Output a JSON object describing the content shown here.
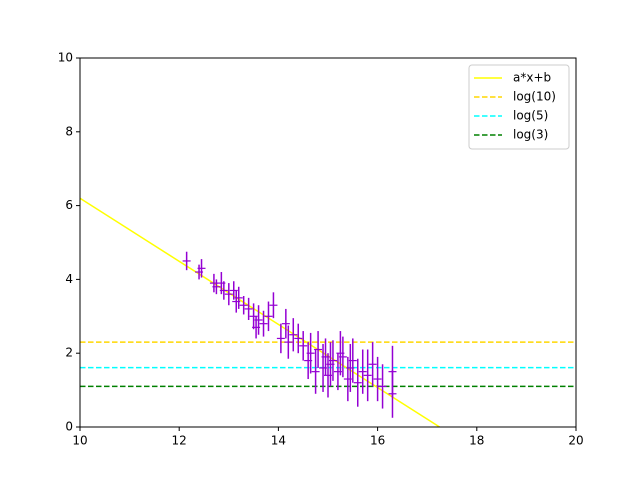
{
  "chart_data": {
    "type": "scatter",
    "color": "#9400d3",
    "x": [
      12.15,
      12.4,
      12.45,
      12.7,
      12.75,
      12.85,
      12.9,
      13.0,
      13.1,
      13.15,
      13.2,
      13.3,
      13.4,
      13.5,
      13.55,
      13.6,
      13.7,
      13.8,
      13.9,
      14.05,
      14.15,
      14.2,
      14.3,
      14.4,
      14.5,
      14.6,
      14.65,
      14.75,
      14.8,
      14.9,
      14.95,
      15.0,
      15.05,
      15.1,
      15.2,
      15.25,
      15.3,
      15.4,
      15.45,
      15.5,
      15.6,
      15.7,
      15.8,
      15.9,
      16.0,
      16.1,
      16.3,
      16.3
    ],
    "values": [
      4.5,
      4.2,
      4.3,
      3.9,
      3.8,
      3.9,
      3.7,
      3.6,
      3.7,
      3.4,
      3.5,
      3.3,
      3.2,
      3.0,
      2.7,
      2.9,
      2.8,
      3.0,
      3.3,
      2.4,
      2.8,
      2.3,
      2.5,
      2.4,
      2.2,
      1.8,
      2.0,
      1.5,
      2.1,
      1.6,
      1.9,
      1.4,
      1.7,
      1.8,
      1.5,
      2.0,
      1.9,
      1.3,
      1.6,
      1.8,
      1.2,
      1.5,
      1.4,
      1.7,
      1.3,
      1.1,
      1.5,
      0.9
    ],
    "errors": [
      0.25,
      0.2,
      0.25,
      0.25,
      0.2,
      0.3,
      0.25,
      0.3,
      0.25,
      0.3,
      0.3,
      0.25,
      0.3,
      0.35,
      0.3,
      0.4,
      0.35,
      0.4,
      0.35,
      0.4,
      0.4,
      0.45,
      0.45,
      0.4,
      0.4,
      0.5,
      0.55,
      0.6,
      0.5,
      0.65,
      0.5,
      0.6,
      0.6,
      0.55,
      0.5,
      0.6,
      0.55,
      0.6,
      0.65,
      0.6,
      0.65,
      0.6,
      0.7,
      0.6,
      0.6,
      0.6,
      0.7,
      0.65
    ],
    "fit": {
      "name": "a*x+b",
      "color": "#ffff00",
      "x": [
        10,
        17.25
      ],
      "values": [
        6.2,
        0
      ]
    },
    "hlines": [
      {
        "name": "log(10)",
        "value": 2.3,
        "color": "#ffd700"
      },
      {
        "name": "log(5)",
        "value": 1.61,
        "color": "#00ffff"
      },
      {
        "name": "log(3)",
        "value": 1.1,
        "color": "#008000"
      }
    ],
    "xlim": [
      10,
      20
    ],
    "xticks": [
      10,
      12,
      14,
      16,
      18,
      20
    ],
    "ylim": [
      0,
      10
    ],
    "yticks": [
      0,
      2,
      4,
      6,
      8,
      10
    ],
    "legend": "upper right"
  }
}
